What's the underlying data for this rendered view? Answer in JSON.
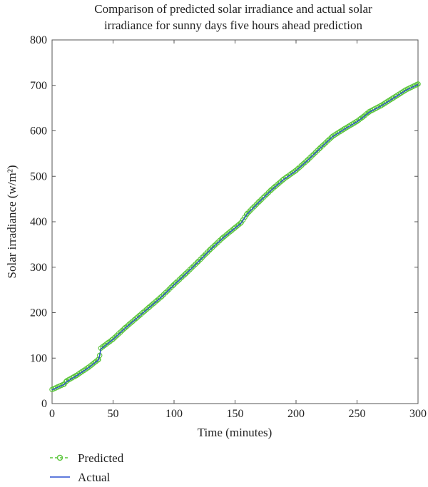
{
  "chart_data": {
    "type": "line",
    "title": [
      "Comparison of predicted solar irradiance and actual solar",
      "irradiance for sunny days five hours ahead prediction"
    ],
    "xlabel": "Time (minutes)",
    "ylabel": "Solar irradiance (w/m²)",
    "xlim": [
      0,
      300
    ],
    "ylim": [
      0,
      800
    ],
    "xticks": [
      0,
      50,
      100,
      150,
      200,
      250,
      300
    ],
    "yticks": [
      0,
      100,
      200,
      300,
      400,
      500,
      600,
      700,
      800
    ],
    "grid": false,
    "legend_position": "bottom-left",
    "series": [
      {
        "name": "Predicted",
        "color": "#5ac53a",
        "marker": "circle",
        "line_style": "dashed",
        "x": [
          0,
          10,
          12,
          20,
          30,
          38,
          39,
          40,
          50,
          60,
          70,
          80,
          90,
          100,
          110,
          120,
          130,
          140,
          150,
          155,
          160,
          170,
          180,
          190,
          200,
          210,
          220,
          230,
          240,
          250,
          255,
          260,
          270,
          280,
          290,
          300
        ],
        "y": [
          31,
          43,
          50,
          62,
          80,
          97,
          106,
          122,
          142,
          167,
          190,
          213,
          236,
          262,
          287,
          313,
          340,
          365,
          387,
          398,
          418,
          445,
          471,
          494,
          513,
          537,
          563,
          588,
          605,
          621,
          631,
          642,
          656,
          673,
          690,
          703
        ]
      },
      {
        "name": "Actual",
        "color": "#2a4fd0",
        "line_style": "solid",
        "x": [
          0,
          10,
          12,
          20,
          30,
          38,
          39,
          40,
          50,
          60,
          70,
          80,
          90,
          100,
          110,
          120,
          130,
          140,
          150,
          155,
          160,
          170,
          180,
          190,
          200,
          210,
          220,
          230,
          240,
          250,
          255,
          260,
          270,
          280,
          290,
          300
        ],
        "y": [
          30,
          42,
          48,
          61,
          79,
          96,
          105,
          120,
          141,
          166,
          189,
          212,
          235,
          261,
          286,
          312,
          339,
          364,
          386,
          397,
          417,
          444,
          470,
          493,
          512,
          536,
          562,
          587,
          604,
          620,
          630,
          641,
          655,
          672,
          689,
          702
        ]
      }
    ]
  }
}
